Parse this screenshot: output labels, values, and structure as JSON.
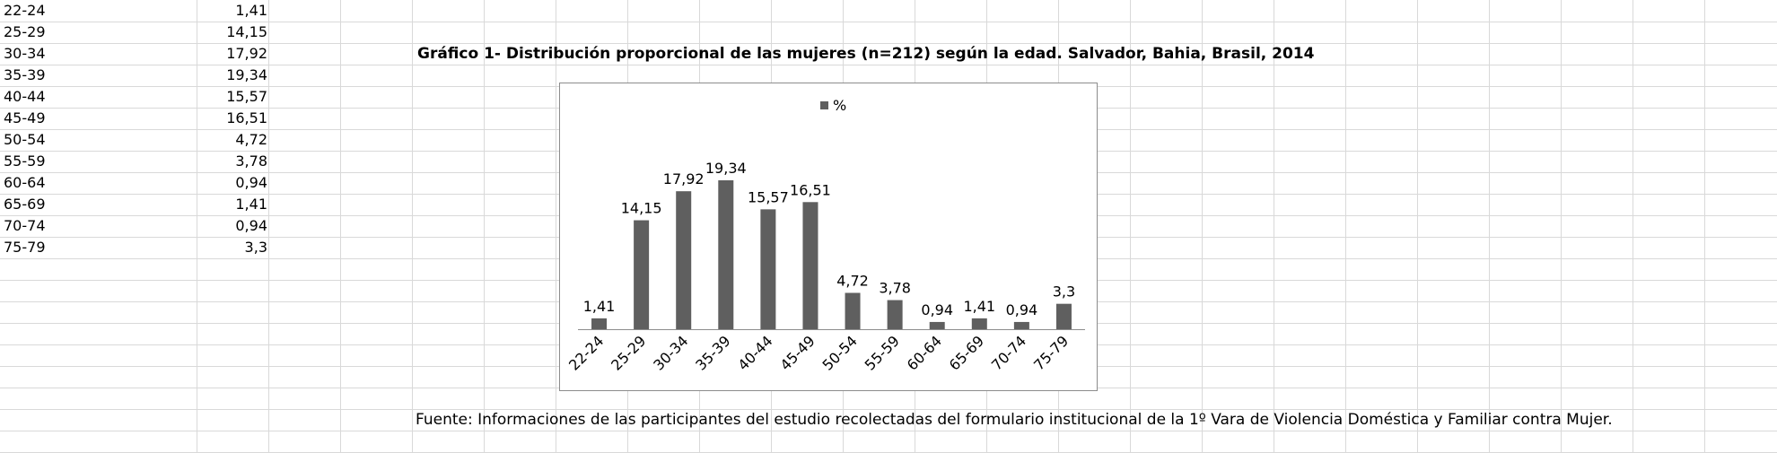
{
  "table": {
    "rows": [
      {
        "label": "22-24",
        "value": "1,41"
      },
      {
        "label": "25-29",
        "value": "14,15"
      },
      {
        "label": "30-34",
        "value": "17,92"
      },
      {
        "label": "35-39",
        "value": "19,34"
      },
      {
        "label": "40-44",
        "value": "15,57"
      },
      {
        "label": "45-49",
        "value": "16,51"
      },
      {
        "label": "50-54",
        "value": "4,72"
      },
      {
        "label": "55-59",
        "value": "3,78"
      },
      {
        "label": "60-64",
        "value": "0,94"
      },
      {
        "label": "65-69",
        "value": "1,41"
      },
      {
        "label": "70-74",
        "value": "0,94"
      },
      {
        "label": "75-79",
        "value": "3,3"
      }
    ]
  },
  "chart_title": "Gráfico 1- Distribución proporcional de las mujeres (n=212) según la edad. Salvador, Bahia, Brasil, 2014",
  "source_note": "Fuente: Informaciones de las participantes del estudio recolectadas del formulario institucional de la 1º Vara de Violencia Doméstica y Familiar contra Mujer.",
  "colors": {
    "bar": "#5f5f5f",
    "grid": "#d9d9d9",
    "axis": "#8c8c8c"
  },
  "chart_data": {
    "type": "bar",
    "title": "Gráfico 1- Distribución proporcional de las mujeres (n=212) según la edad. Salvador, Bahia, Brasil, 2014",
    "legend": {
      "label": "%",
      "placement": "top"
    },
    "categories": [
      "22-24",
      "25-29",
      "30-34",
      "35-39",
      "40-44",
      "45-49",
      "50-54",
      "55-59",
      "60-64",
      "65-69",
      "70-74",
      "75-79"
    ],
    "values": [
      1.41,
      14.15,
      17.92,
      19.34,
      15.57,
      16.51,
      4.72,
      3.78,
      0.94,
      1.41,
      0.94,
      3.3
    ],
    "value_labels": [
      "1,41",
      "14,15",
      "17,92",
      "19,34",
      "15,57",
      "16,51",
      "4,72",
      "3,78",
      "0,94",
      "1,41",
      "0,94",
      "3,3"
    ],
    "xlabel": "",
    "ylabel": "",
    "ylim": [
      0,
      25
    ],
    "grid": false
  }
}
